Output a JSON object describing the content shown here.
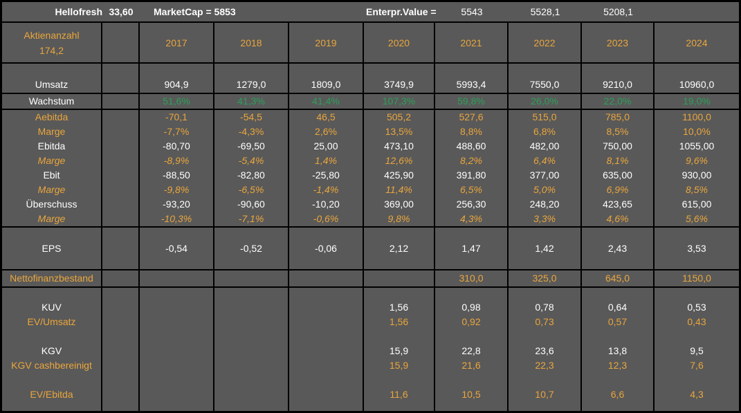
{
  "colors": {
    "background": "#595959",
    "grid_line": "#000000",
    "accent_orange": "#EAA63C",
    "growth_green": "#2CA05A",
    "text_white": "#FFFFFF"
  },
  "top": {
    "company": "Hellofresh",
    "price": "33,60",
    "marketcap": "MarketCap = 5853",
    "ev_label": "Enterpr.Value =",
    "ev_values": [
      "5543",
      "5528,1",
      "5208,1"
    ]
  },
  "head": {
    "shares_label": "Aktienanzahl",
    "shares": "174,2",
    "years": [
      "2017",
      "2018",
      "2019",
      "2020",
      "2021",
      "2022",
      "2023",
      "2024"
    ]
  },
  "umsatz": {
    "label": "Umsatz",
    "v": [
      "904,9",
      "1279,0",
      "1809,0",
      "3749,9",
      "5993,4",
      "7550,0",
      "9210,0",
      "10960,0"
    ]
  },
  "wachstum": {
    "label": "Wachstum",
    "v": [
      "51,6%",
      "41,3%",
      "41,4%",
      "107,3%",
      "59,8%",
      "26,0%",
      "22,0%",
      "19,0%"
    ]
  },
  "mid": {
    "rows": [
      {
        "label": "Aebitda",
        "style": "white-orange",
        "stylekey": "orange",
        "v": [
          "-70,1",
          "-54,5",
          "46,5",
          "505,2",
          "527,6",
          "515,0",
          "785,0",
          "1100,0"
        ]
      },
      {
        "label": "Marge",
        "stylekey": "orange",
        "v": [
          "-7,7%",
          "-4,3%",
          "2,6%",
          "13,5%",
          "8,8%",
          "6,8%",
          "8,5%",
          "10,0%"
        ]
      },
      {
        "label": "Ebitda",
        "stylekey": "white",
        "v": [
          "-80,70",
          "-69,50",
          "25,00",
          "473,10",
          "488,60",
          "482,00",
          "750,00",
          "1055,00"
        ]
      },
      {
        "label": "Marge",
        "stylekey": "orange-italic",
        "v": [
          "-8,9%",
          "-5,4%",
          "1,4%",
          "12,6%",
          "8,2%",
          "6,4%",
          "8,1%",
          "9,6%"
        ]
      },
      {
        "label": "Ebit",
        "stylekey": "white",
        "v": [
          "-88,50",
          "-82,80",
          "-25,80",
          "425,90",
          "391,80",
          "377,00",
          "635,00",
          "930,00"
        ]
      },
      {
        "label": "Marge",
        "stylekey": "orange-italic",
        "v": [
          "-9,8%",
          "-6,5%",
          "-1,4%",
          "11,4%",
          "6,5%",
          "5,0%",
          "6,9%",
          "8,5%"
        ]
      },
      {
        "label": "Überschuss",
        "stylekey": "white",
        "v": [
          "-93,20",
          "-90,60",
          "-10,20",
          "369,00",
          "256,30",
          "248,20",
          "423,65",
          "615,00"
        ]
      },
      {
        "label": "Marge",
        "stylekey": "orange-italic",
        "v": [
          "-10,3%",
          "-7,1%",
          "-0,6%",
          "9,8%",
          "4,3%",
          "3,3%",
          "4,6%",
          "5,6%"
        ]
      }
    ]
  },
  "eps": {
    "label": "EPS",
    "v": [
      "-0,54",
      "-0,52",
      "-0,06",
      "2,12",
      "1,47",
      "1,42",
      "2,43",
      "3,53"
    ]
  },
  "netto": {
    "label": "Nettofinanzbestand",
    "v": [
      "",
      "",
      "",
      "",
      "310,0",
      "325,0",
      "645,0",
      "1150,0"
    ]
  },
  "bottom": {
    "rows": [
      {
        "label": "KUV",
        "stylekey": "white",
        "v": [
          "",
          "",
          "",
          "1,56",
          "0,98",
          "0,78",
          "0,64",
          "0,53"
        ]
      },
      {
        "label": "EV/Umsatz",
        "stylekey": "orange",
        "v": [
          "",
          "",
          "",
          "1,56",
          "0,92",
          "0,73",
          "0,57",
          "0,43"
        ]
      },
      {
        "label": "",
        "stylekey": "blank",
        "v": [
          "",
          "",
          "",
          "",
          "",
          "",
          "",
          ""
        ]
      },
      {
        "label": "KGV",
        "stylekey": "white",
        "v": [
          "",
          "",
          "",
          "15,9",
          "22,8",
          "23,6",
          "13,8",
          "9,5"
        ]
      },
      {
        "label": "KGV cashbereinigt",
        "stylekey": "orange",
        "v": [
          "",
          "",
          "",
          "15,9",
          "21,6",
          "22,3",
          "12,3",
          "7,6"
        ]
      },
      {
        "label": "",
        "stylekey": "blank",
        "v": [
          "",
          "",
          "",
          "",
          "",
          "",
          "",
          ""
        ]
      },
      {
        "label": "EV/Ebitda",
        "stylekey": "orange",
        "v": [
          "",
          "",
          "",
          "11,6",
          "10,5",
          "10,7",
          "6,6",
          "4,3"
        ]
      }
    ]
  }
}
